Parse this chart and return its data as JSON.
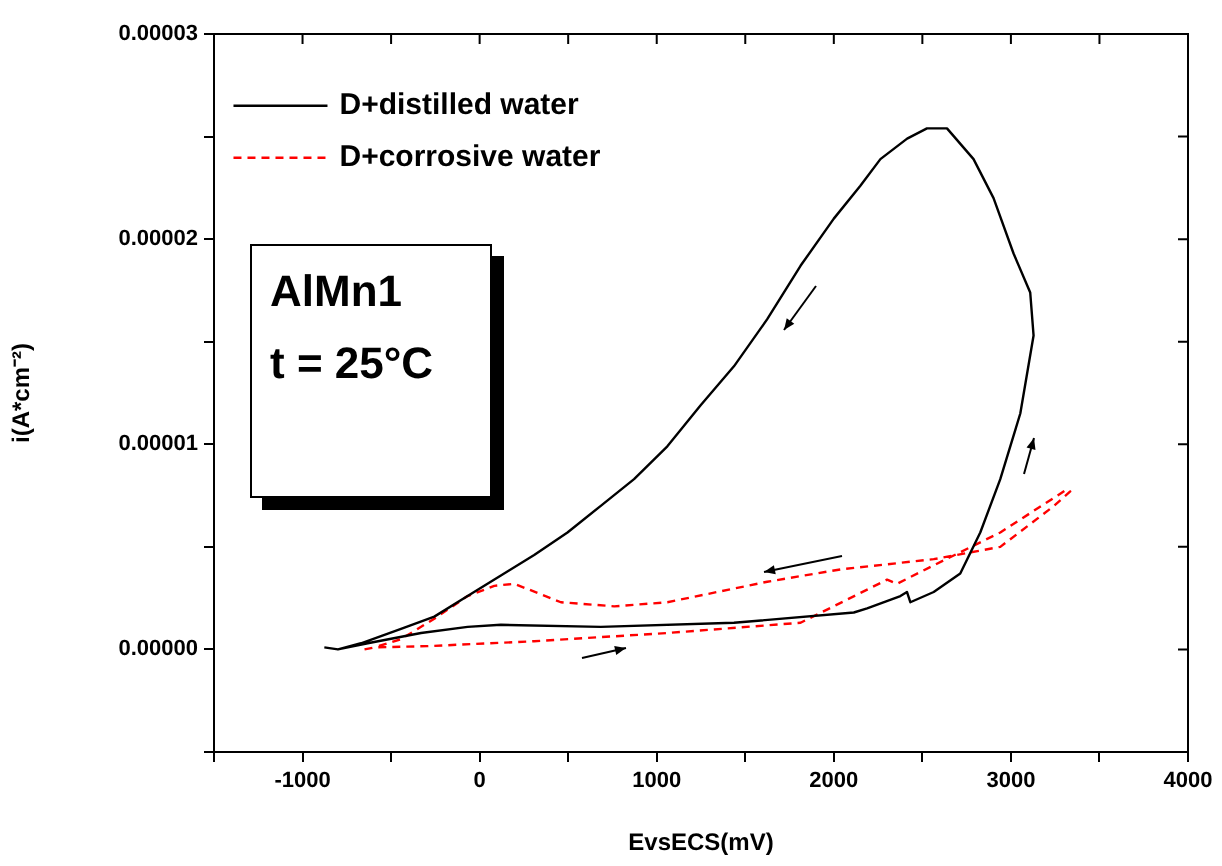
{
  "chart_data": {
    "type": "line",
    "xlabel": "EvsECS(mV)",
    "ylabel": "i(A*cm⁻²)",
    "annotations": [
      "AlMn1",
      "t = 25°C"
    ],
    "xlim": [
      -1500,
      4000
    ],
    "xticks": [
      {
        "value": -1500,
        "label": null
      },
      -1000,
      {
        "value": -500,
        "label": null
      },
      0,
      {
        "value": 500,
        "label": null
      },
      1000,
      {
        "value": 1500,
        "label": null
      },
      2000,
      {
        "value": 2500,
        "label": null
      },
      3000,
      {
        "value": 3500,
        "label": null
      },
      4000
    ],
    "ylim": [
      -5e-06,
      3e-05
    ],
    "yticks": [
      {
        "value": -5e-06,
        "label": null
      },
      {
        "value": 0,
        "label": "0.00000"
      },
      {
        "value": 5e-06,
        "label": null
      },
      {
        "value": 1e-05,
        "label": "0.00001"
      },
      {
        "value": 1.5e-05,
        "label": null
      },
      {
        "value": 2e-05,
        "label": "0.00002"
      },
      {
        "value": 2.5e-05,
        "label": null
      },
      {
        "value": 3e-05,
        "label": "0.00003"
      }
    ],
    "grid": false,
    "legend": "top left",
    "marker": "none",
    "series": [
      {
        "name": "D+distilled water",
        "color": "#000000",
        "line_style": "solid",
        "x": [
          -877,
          -800,
          -632,
          -331,
          -68,
          120,
          684,
          1436,
          2113,
          2188,
          2376,
          2413,
          2432,
          2564,
          2714,
          2827,
          2940,
          3053,
          3128,
          3109,
          3015,
          2902,
          2789,
          2639,
          2526,
          2414,
          2263,
          2150,
          2000,
          1812,
          1624,
          1436,
          1248,
          1060,
          872,
          684,
          496,
          308,
          120,
          -68,
          -256,
          -444,
          -670,
          -800
        ],
        "values": [
          1e-07,
          0,
          3e-07,
          8e-07,
          1.1e-06,
          1.2e-06,
          1.1e-06,
          1.3e-06,
          1.8e-06,
          2e-06,
          2.6e-06,
          2.8e-06,
          2.3e-06,
          2.8e-06,
          3.7e-06,
          5.7e-06,
          8.3e-06,
          1.15e-05,
          1.53e-05,
          1.74e-05,
          1.93e-05,
          2.2e-05,
          2.39e-05,
          2.54e-05,
          2.54e-05,
          2.49e-05,
          2.39e-05,
          2.26e-05,
          2.1e-05,
          1.87e-05,
          1.61e-05,
          1.38e-05,
          1.19e-05,
          9.9e-06,
          8.3e-06,
          7e-06,
          5.7e-06,
          4.6e-06,
          3.6e-06,
          2.6e-06,
          1.6e-06,
          1e-06,
          3e-07,
          0
        ]
      },
      {
        "name": "D+corrosive water",
        "color": "#ff0000",
        "line_style": "dashed",
        "x": [
          -650,
          -594,
          -294,
          308,
          1060,
          1812,
          2301,
          2357,
          2564,
          2940,
          3316,
          3335,
          3244,
          2940,
          2564,
          2038,
          1624,
          1060,
          760,
          459,
          196,
          83,
          -68,
          -256,
          -444,
          -594
        ],
        "values": [
          0,
          1e-07,
          1.6e-07,
          4e-07,
          8e-07,
          1.3e-06,
          3.4e-06,
          3.2e-06,
          4.1e-06,
          5.7e-06,
          7.8e-06,
          7.7e-06,
          7e-06,
          5e-06,
          4.4e-06,
          3.9e-06,
          3.3e-06,
          2.3e-06,
          2.1e-06,
          2.3e-06,
          3.2e-06,
          3.1e-06,
          2.6e-06,
          1.5e-06,
          5e-07,
          1e-07
        ]
      }
    ]
  }
}
